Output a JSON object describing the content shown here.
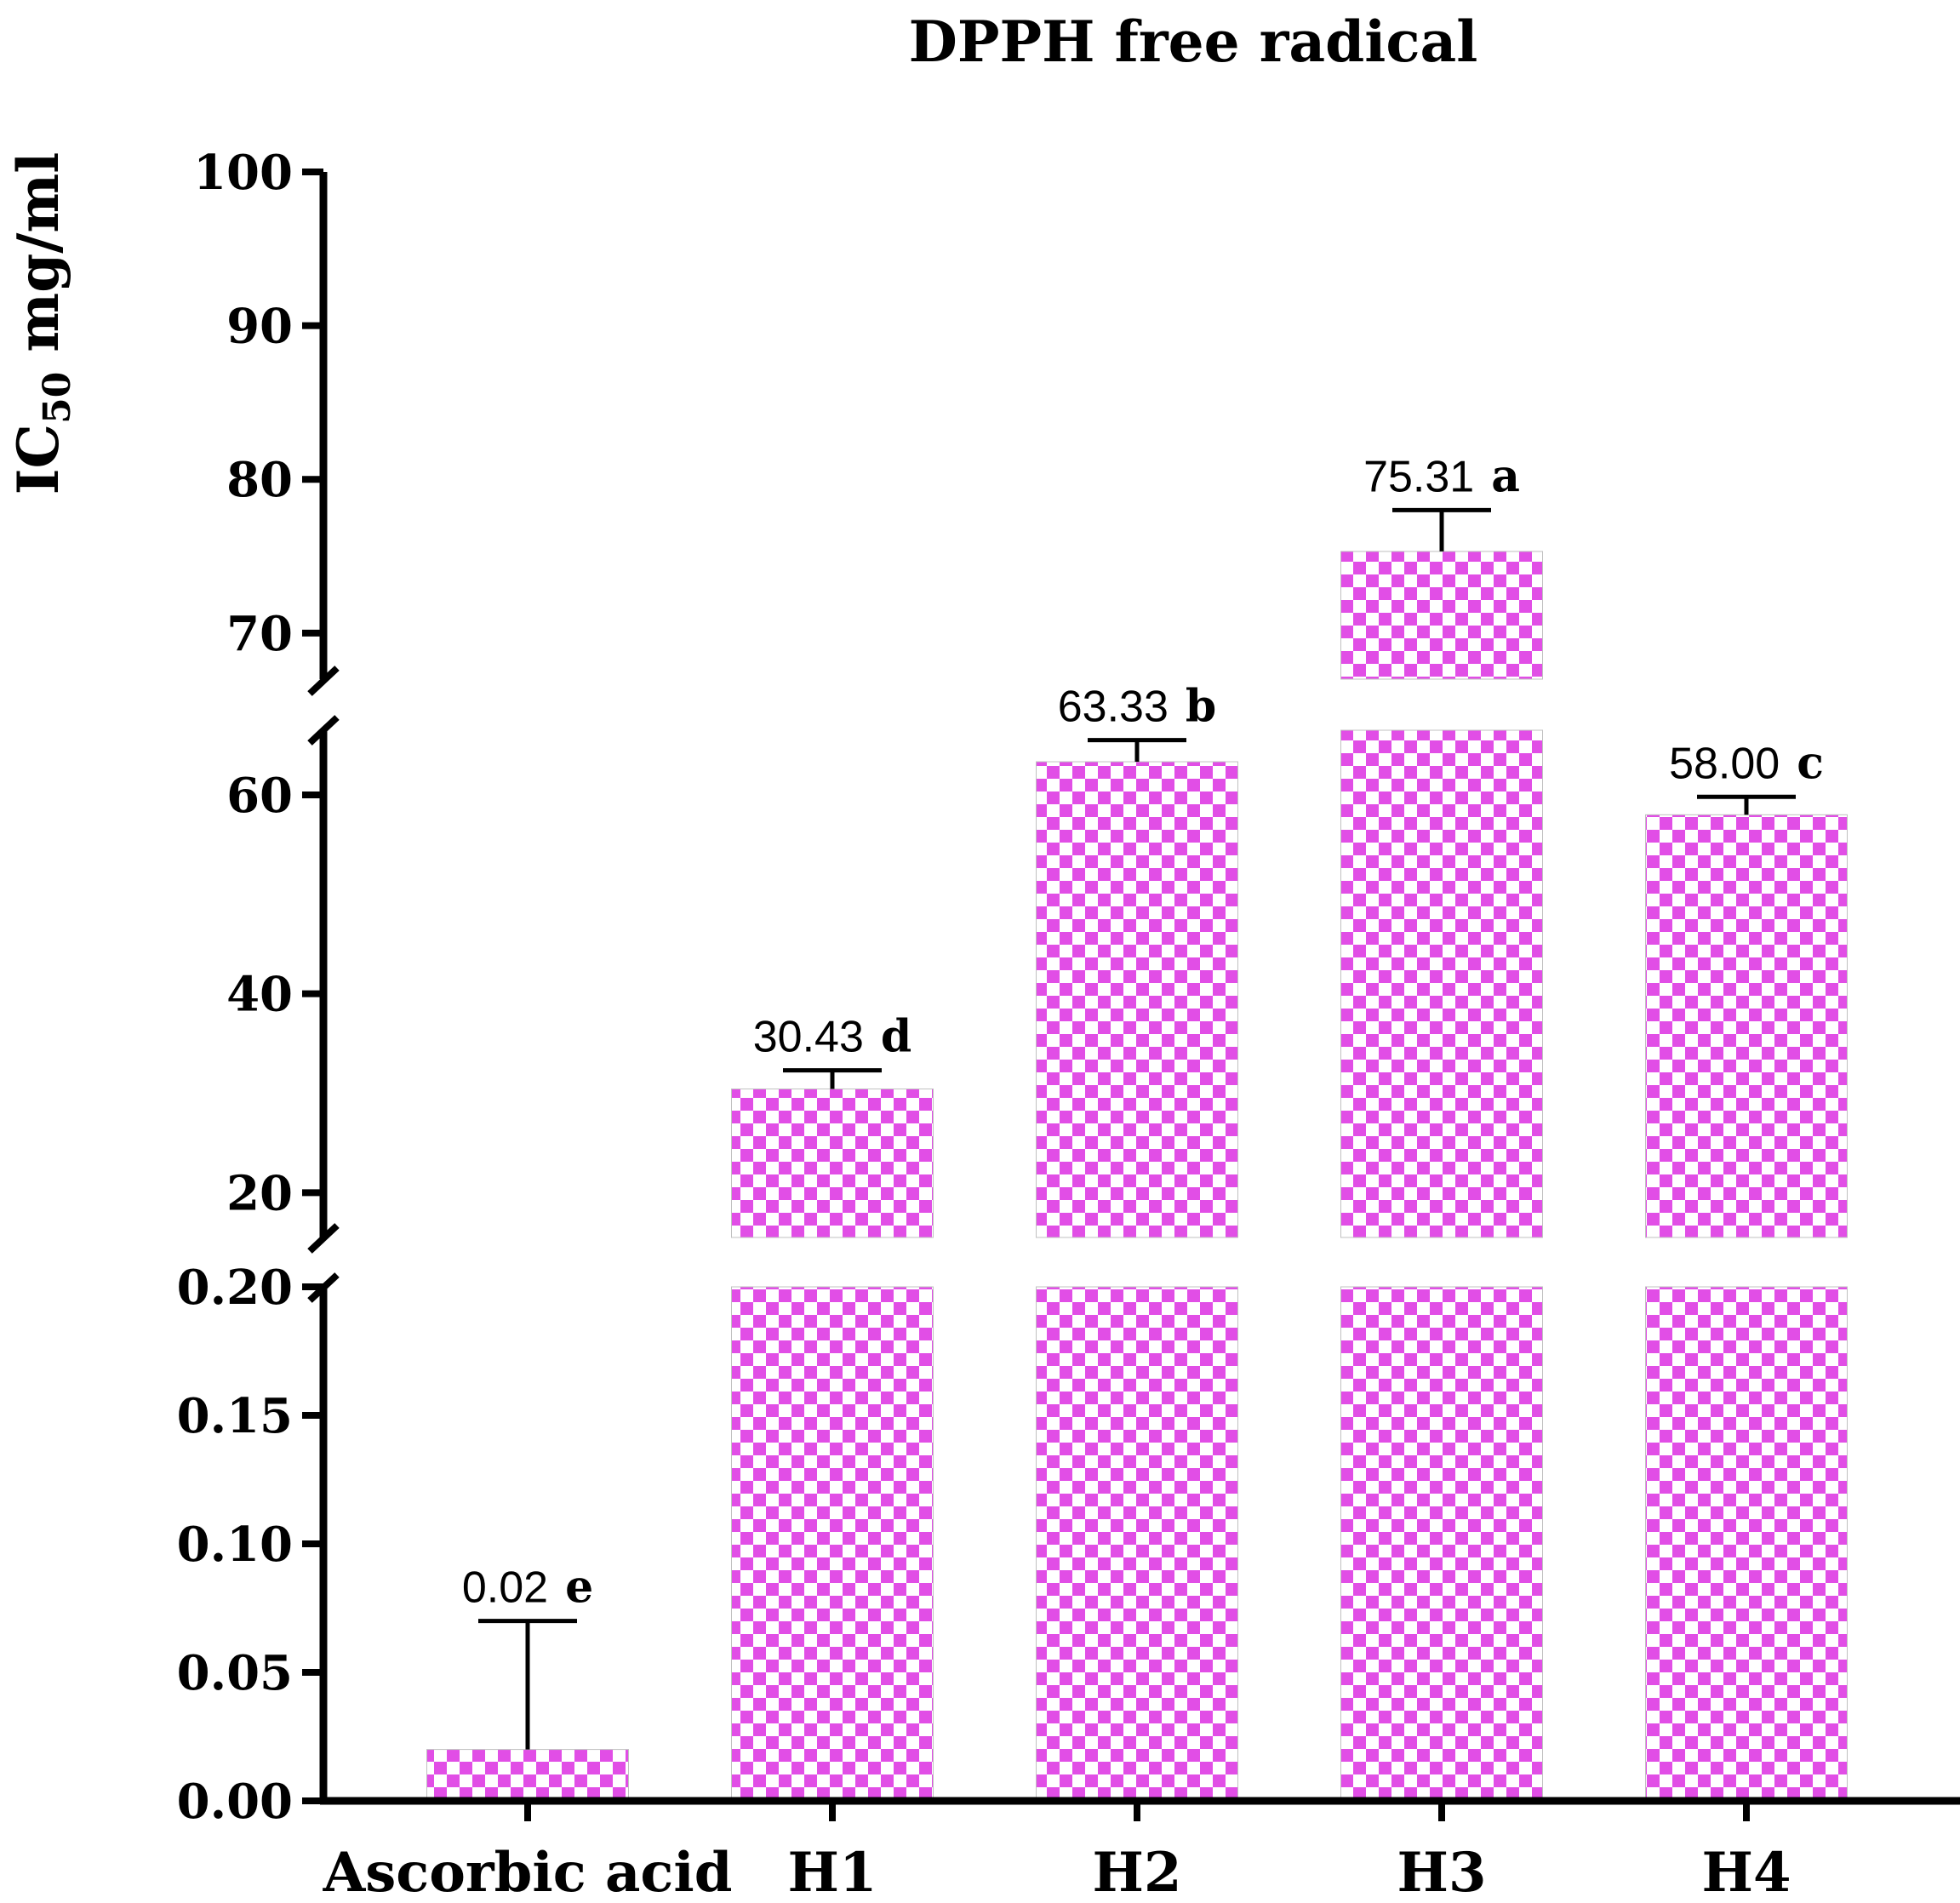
{
  "chart_data": {
    "type": "bar",
    "title": "DPPH free radical",
    "ylabel": {
      "main": "IC",
      "sub": "50",
      "unit": " mg/ml"
    },
    "categories": [
      "Ascorbic acid",
      "H1",
      "H2",
      "H3",
      "H4"
    ],
    "values": [
      0.02,
      30.43,
      63.33,
      75.31,
      58.0
    ],
    "error_upper": [
      0.07,
      32.3,
      65.5,
      78.0,
      59.8
    ],
    "value_labels": [
      "0.02",
      "30.43",
      "63.33",
      "75.31",
      "58.00"
    ],
    "significance_letters": [
      "e",
      "d",
      "b",
      "a",
      "c"
    ],
    "y_axis": {
      "broken": true,
      "segments": [
        {
          "range": [
            0,
            0.2
          ],
          "ticks": [
            "0.00",
            "0.05",
            "0.10",
            "0.15",
            "0.20"
          ]
        },
        {
          "range": [
            15.5,
            66.5
          ],
          "ticks": [
            "20",
            "40",
            "60"
          ]
        },
        {
          "range": [
            67,
            100
          ],
          "ticks": [
            "70",
            "80",
            "90",
            "100"
          ]
        }
      ]
    },
    "bar_fill": "checkerboard",
    "colors": {
      "bar_pattern": "#e14ee6",
      "bar_background": "#ffffff",
      "axis": "#000000"
    },
    "grid": false,
    "legend": "none"
  }
}
